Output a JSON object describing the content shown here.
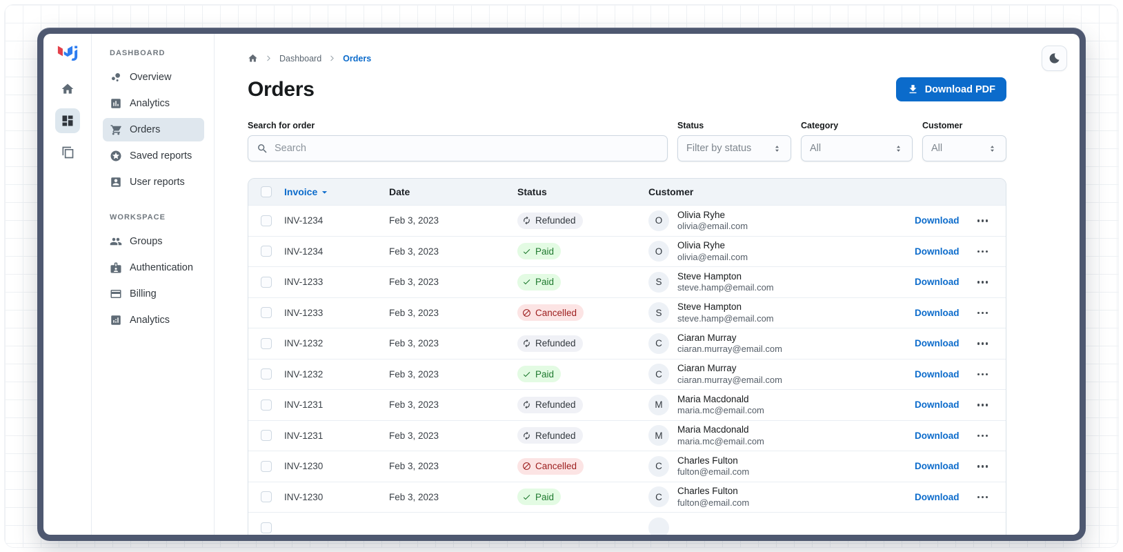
{
  "window": {
    "frame_color": "#4e5870",
    "theme_toggle_icon": "moon"
  },
  "rail": {
    "logo_icon": "mui-logo",
    "items": [
      {
        "icon": "home",
        "active": false
      },
      {
        "icon": "dashboard-grid",
        "active": true
      },
      {
        "icon": "windows",
        "active": false
      }
    ]
  },
  "sidebar": {
    "sections": [
      {
        "title": "DASHBOARD",
        "items": [
          {
            "label": "Overview",
            "icon": "bubble-chart",
            "active": false
          },
          {
            "label": "Analytics",
            "icon": "bar-chart-box",
            "active": false
          },
          {
            "label": "Orders",
            "icon": "shopping-cart",
            "active": true
          },
          {
            "label": "Saved reports",
            "icon": "star-circle",
            "active": false
          },
          {
            "label": "User reports",
            "icon": "person-card",
            "active": false
          }
        ]
      },
      {
        "title": "WORKSPACE",
        "items": [
          {
            "label": "Groups",
            "icon": "groups",
            "active": false
          },
          {
            "label": "Authentication",
            "icon": "badge",
            "active": false
          },
          {
            "label": "Billing",
            "icon": "credit-card",
            "active": false
          },
          {
            "label": "Analytics",
            "icon": "analytics-box",
            "active": false
          }
        ]
      }
    ]
  },
  "breadcrumb": {
    "home_icon": "home",
    "items": [
      "Dashboard",
      "Orders"
    ]
  },
  "page": {
    "title": "Orders",
    "download_button": "Download PDF",
    "download_icon": "download"
  },
  "filters": {
    "search": {
      "label": "Search for order",
      "placeholder": "Search",
      "icon": "search"
    },
    "status": {
      "label": "Status",
      "value": "Filter by status"
    },
    "category": {
      "label": "Category",
      "value": "All"
    },
    "customer": {
      "label": "Customer",
      "value": "All"
    }
  },
  "table": {
    "columns": [
      "Invoice",
      "Date",
      "Status",
      "Customer"
    ],
    "sort_column": "Invoice",
    "action_label": "Download",
    "rows": [
      {
        "invoice": "INV-1234",
        "date": "Feb 3, 2023",
        "status": "Refunded",
        "initial": "O",
        "name": "Olivia Ryhe",
        "email": "olivia@email.com"
      },
      {
        "invoice": "INV-1234",
        "date": "Feb 3, 2023",
        "status": "Paid",
        "initial": "O",
        "name": "Olivia Ryhe",
        "email": "olivia@email.com"
      },
      {
        "invoice": "INV-1233",
        "date": "Feb 3, 2023",
        "status": "Paid",
        "initial": "S",
        "name": "Steve Hampton",
        "email": "steve.hamp@email.com"
      },
      {
        "invoice": "INV-1233",
        "date": "Feb 3, 2023",
        "status": "Cancelled",
        "initial": "S",
        "name": "Steve Hampton",
        "email": "steve.hamp@email.com"
      },
      {
        "invoice": "INV-1232",
        "date": "Feb 3, 2023",
        "status": "Refunded",
        "initial": "C",
        "name": "Ciaran Murray",
        "email": "ciaran.murray@email.com"
      },
      {
        "invoice": "INV-1232",
        "date": "Feb 3, 2023",
        "status": "Paid",
        "initial": "C",
        "name": "Ciaran Murray",
        "email": "ciaran.murray@email.com"
      },
      {
        "invoice": "INV-1231",
        "date": "Feb 3, 2023",
        "status": "Refunded",
        "initial": "M",
        "name": "Maria Macdonald",
        "email": "maria.mc@email.com"
      },
      {
        "invoice": "INV-1231",
        "date": "Feb 3, 2023",
        "status": "Refunded",
        "initial": "M",
        "name": "Maria Macdonald",
        "email": "maria.mc@email.com"
      },
      {
        "invoice": "INV-1230",
        "date": "Feb 3, 2023",
        "status": "Cancelled",
        "initial": "C",
        "name": "Charles Fulton",
        "email": "fulton@email.com"
      },
      {
        "invoice": "INV-1230",
        "date": "Feb 3, 2023",
        "status": "Paid",
        "initial": "C",
        "name": "Charles Fulton",
        "email": "fulton@email.com"
      }
    ],
    "partial_row_visible": true
  },
  "colors": {
    "primary": "#0b6bcb",
    "chip_neutral_bg": "#f0f1f6",
    "chip_neutral_text": "#32383e",
    "chip_success_bg": "#e3fbe3",
    "chip_success_text": "#1f7a2f",
    "chip_danger_bg": "#fce4e4",
    "chip_danger_text": "#9c1c1c",
    "frame": "#4e5870",
    "table_header_bg": "#f0f4f8"
  }
}
